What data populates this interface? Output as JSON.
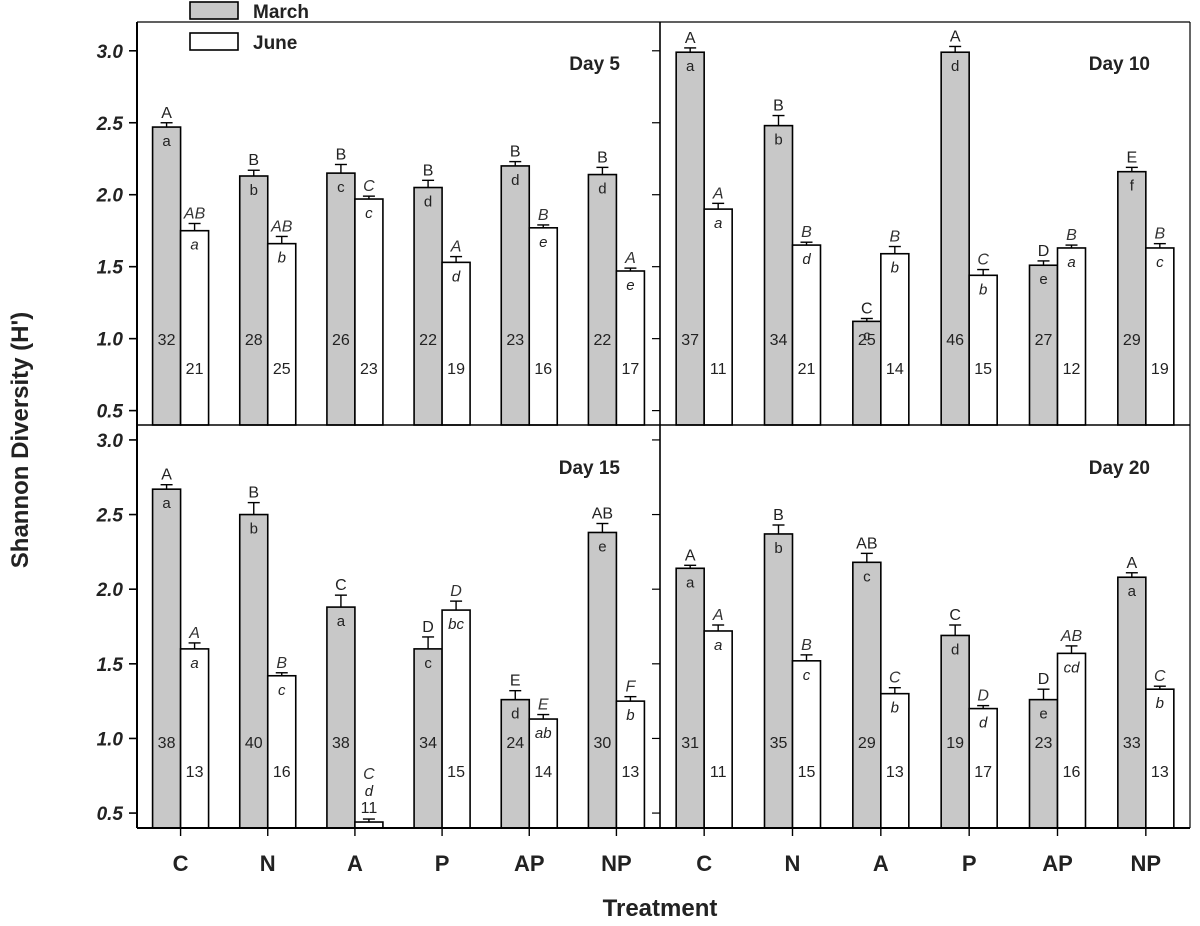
{
  "chart_data": {
    "type": "bar",
    "ylabel": "Shannon Diversity (H')",
    "xlabel": "Treatment",
    "categories": [
      "C",
      "N",
      "A",
      "P",
      "AP",
      "NP"
    ],
    "legend": {
      "placement": "top-left",
      "entries": [
        {
          "name": "March",
          "color": "#c8c8c8"
        },
        {
          "name": "June",
          "color": "#ffffff"
        }
      ]
    },
    "ylim": [
      0.4,
      3.2
    ],
    "yticks": [
      "3.0",
      "2.5",
      "2.0",
      "1.5",
      "1.0",
      "0.5"
    ],
    "yticks_bottom": [
      "3.0",
      "2.5",
      "2.0",
      "1.5",
      "1.0",
      "0.5"
    ],
    "panels": [
      {
        "title": "Day 5",
        "series": [
          {
            "name": "March",
            "values": [
              2.47,
              2.13,
              2.15,
              2.05,
              2.2,
              2.14
            ],
            "errors": [
              0.03,
              0.04,
              0.06,
              0.05,
              0.03,
              0.05
            ],
            "above": [
              "A",
              "B",
              "B",
              "B",
              "B",
              "B"
            ],
            "inside": [
              "a",
              "b",
              "c",
              "d",
              "d",
              "d"
            ],
            "counts": [
              "32",
              "28",
              "26",
              "22",
              "23",
              "22"
            ]
          },
          {
            "name": "June",
            "values": [
              1.75,
              1.66,
              1.97,
              1.53,
              1.77,
              1.47
            ],
            "errors": [
              0.05,
              0.05,
              0.02,
              0.04,
              0.02,
              0.02
            ],
            "above": [
              "AB",
              "AB",
              "C",
              "A",
              "B",
              "A"
            ],
            "inside": [
              "a",
              "b",
              "c",
              "d",
              "e",
              "e"
            ],
            "counts": [
              "21",
              "25",
              "23",
              "19",
              "16",
              "17"
            ]
          }
        ]
      },
      {
        "title": "Day 10",
        "series": [
          {
            "name": "March",
            "values": [
              2.99,
              2.48,
              1.12,
              2.99,
              1.51,
              2.16
            ],
            "errors": [
              0.03,
              0.07,
              0.02,
              0.04,
              0.03,
              0.03
            ],
            "above": [
              "A",
              "B",
              "C",
              "A",
              "D",
              "E"
            ],
            "inside": [
              "a",
              "b",
              "c",
              "d",
              "e",
              "f"
            ],
            "counts": [
              "37",
              "34",
              "25",
              "46",
              "27",
              "29"
            ]
          },
          {
            "name": "June",
            "values": [
              1.9,
              1.65,
              1.59,
              1.44,
              1.63,
              1.63
            ],
            "errors": [
              0.04,
              0.02,
              0.05,
              0.04,
              0.02,
              0.03
            ],
            "above": [
              "A",
              "B",
              "B",
              "C",
              "B",
              "B"
            ],
            "inside": [
              "a",
              "d",
              "b",
              "b",
              "a",
              "c"
            ],
            "counts": [
              "11",
              "21",
              "14",
              "15",
              "12",
              "19"
            ]
          }
        ]
      },
      {
        "title": "Day 15",
        "series": [
          {
            "name": "March",
            "values": [
              2.67,
              2.5,
              1.88,
              1.6,
              1.26,
              2.38
            ],
            "errors": [
              0.03,
              0.08,
              0.08,
              0.08,
              0.06,
              0.06
            ],
            "above": [
              "A",
              "B",
              "C",
              "D",
              "E",
              "AB"
            ],
            "inside": [
              "a",
              "b",
              "a",
              "c",
              "d",
              "e"
            ],
            "counts": [
              "38",
              "40",
              "38",
              "34",
              "24",
              "30"
            ]
          },
          {
            "name": "June",
            "values": [
              1.6,
              1.42,
              0.44,
              1.86,
              1.13,
              1.25
            ],
            "errors": [
              0.04,
              0.02,
              0.02,
              0.06,
              0.03,
              0.03
            ],
            "above": [
              "A",
              "B",
              "C",
              "D",
              "E",
              "F"
            ],
            "inside": [
              "a",
              "c",
              "d",
              "bc",
              "ab",
              "b"
            ],
            "counts": [
              "13",
              "16",
              "11",
              "15",
              "14",
              "13"
            ]
          }
        ]
      },
      {
        "title": "Day 20",
        "series": [
          {
            "name": "March",
            "values": [
              2.14,
              2.37,
              2.18,
              1.69,
              1.26,
              2.08
            ],
            "errors": [
              0.02,
              0.06,
              0.06,
              0.07,
              0.07,
              0.03
            ],
            "above": [
              "A",
              "B",
              "AB",
              "C",
              "D",
              "A"
            ],
            "inside": [
              "a",
              "b",
              "c",
              "d",
              "e",
              "a"
            ],
            "counts": [
              "31",
              "35",
              "29",
              "19",
              "23",
              "33"
            ]
          },
          {
            "name": "June",
            "values": [
              1.72,
              1.52,
              1.3,
              1.2,
              1.57,
              1.33
            ],
            "errors": [
              0.04,
              0.04,
              0.04,
              0.02,
              0.05,
              0.02
            ],
            "above": [
              "A",
              "B",
              "C",
              "D",
              "AB",
              "C"
            ],
            "inside": [
              "a",
              "c",
              "b",
              "d",
              "cd",
              "b"
            ],
            "counts": [
              "11",
              "15",
              "13",
              "17",
              "16",
              "13"
            ]
          }
        ]
      }
    ]
  }
}
